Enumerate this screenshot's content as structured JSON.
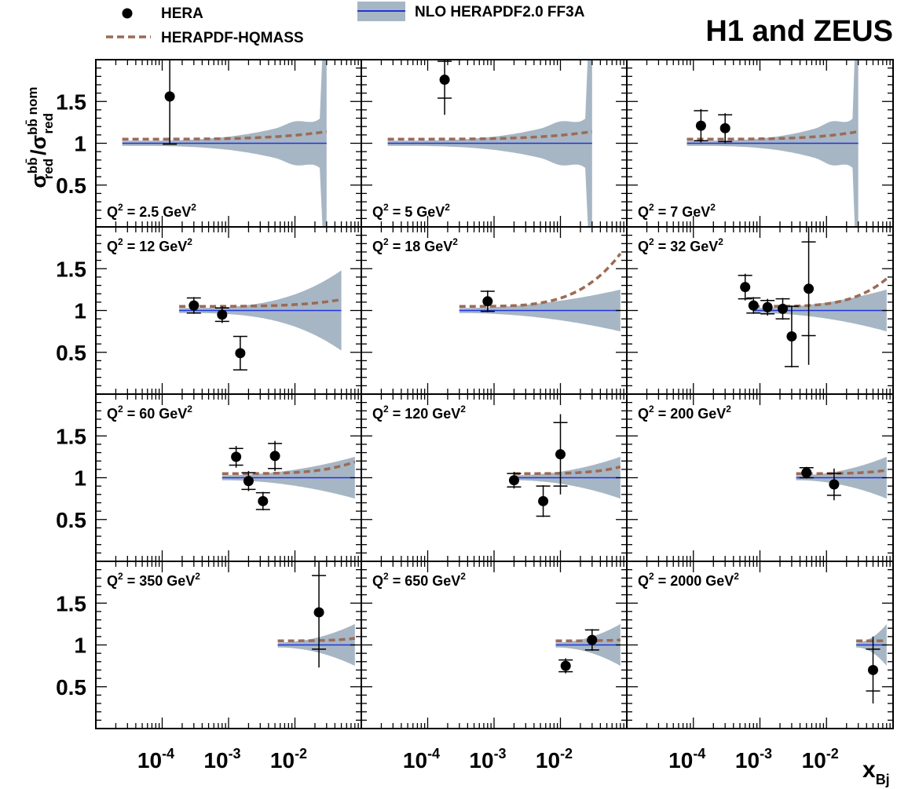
{
  "collaboration": "H1 and ZEUS",
  "legend": {
    "data_label": "HERA",
    "hqmass_label": "HERAPDF-HQMASS",
    "nlo_label": "NLO HERAPDF2.0 FF3A"
  },
  "y_axis_label": {
    "num": "σ",
    "num_sup": "bb̄",
    "num_sub": "red",
    "slash": "/",
    "den": "σ",
    "den_sup": "bb̄ nom",
    "den_sub": "red"
  },
  "x_axis_label": {
    "main": "x",
    "sub": "Bj"
  },
  "colors": {
    "band": "#a6b6c4",
    "nominal": "#2233dd",
    "hqmass": "#9c6a55",
    "data": "#000000"
  },
  "chart_data": {
    "type": "scatter",
    "x_scale": "log",
    "xlim": [
      1e-05,
      0.1
    ],
    "ylim": [
      0,
      2
    ],
    "x_ticks": [
      {
        "value": 0.0001,
        "base": "10",
        "exp": "-4"
      },
      {
        "value": 0.001,
        "base": "10",
        "exp": "-3"
      },
      {
        "value": 0.01,
        "base": "10",
        "exp": "-2"
      }
    ],
    "y_ticks": [
      {
        "value": 0.5,
        "label": "0.5"
      },
      {
        "value": 1,
        "label": "1"
      },
      {
        "value": 1.5,
        "label": "1.5"
      }
    ],
    "panels": [
      {
        "q2": "2.5",
        "theory_range": [
          2.5e-05,
          0.03
        ],
        "hq_end": 1.14,
        "band_tail": "blowup",
        "points": [
          {
            "x": 0.00013,
            "y": 1.56,
            "err": 0.57,
            "syst": 0.57
          }
        ]
      },
      {
        "q2": "5",
        "theory_range": [
          2.5e-05,
          0.03
        ],
        "hq_end": 1.14,
        "band_tail": "blowup",
        "points": [
          {
            "x": 0.00018,
            "y": 1.76,
            "err": 0.42,
            "syst": 0.22
          }
        ]
      },
      {
        "q2": "7",
        "theory_range": [
          8e-05,
          0.03
        ],
        "hq_end": 1.14,
        "band_tail": "blowup",
        "points": [
          {
            "x": 0.00013,
            "y": 1.21,
            "err": 0.2,
            "syst": 0.18
          },
          {
            "x": 0.0003,
            "y": 1.18,
            "err": 0.18,
            "syst": 0.16
          }
        ]
      },
      {
        "q2": "12",
        "theory_range": [
          0.00018,
          0.05
        ],
        "hq_end": 1.13,
        "band_tail": "wide",
        "points": [
          {
            "x": 0.0003,
            "y": 1.06,
            "err": 0.1,
            "syst": 0.09
          },
          {
            "x": 0.0008,
            "y": 0.95,
            "err": 0.1,
            "syst": 0.08
          },
          {
            "x": 0.0015,
            "y": 0.49,
            "err": 0.2,
            "syst": 0.2
          }
        ]
      },
      {
        "q2": "18",
        "theory_range": [
          0.0003,
          0.08
        ],
        "hq_end": 1.68,
        "band_tail": "normal",
        "points": [
          {
            "x": 0.0008,
            "y": 1.11,
            "err": 0.13,
            "syst": 0.12
          }
        ]
      },
      {
        "q2": "32",
        "theory_range": [
          0.0008,
          0.08
        ],
        "hq_end": 1.38,
        "band_tail": "normal",
        "points": [
          {
            "x": 0.0006,
            "y": 1.28,
            "err": 0.16,
            "syst": 0.14
          },
          {
            "x": 0.0008,
            "y": 1.06,
            "err": 0.1,
            "syst": 0.09
          },
          {
            "x": 0.0013,
            "y": 1.04,
            "err": 0.1,
            "syst": 0.08
          },
          {
            "x": 0.0022,
            "y": 1.02,
            "err": 0.13,
            "syst": 0.12
          },
          {
            "x": 0.003,
            "y": 0.69,
            "err": 0.37,
            "syst": 0.36
          },
          {
            "x": 0.0054,
            "y": 1.26,
            "err": 0.91,
            "syst": 0.56
          }
        ]
      },
      {
        "q2": "60",
        "theory_range": [
          0.0008,
          0.08
        ],
        "hq_end": 1.19,
        "band_tail": "normal",
        "points": [
          {
            "x": 0.0013,
            "y": 1.25,
            "err": 0.13,
            "syst": 0.1
          },
          {
            "x": 0.002,
            "y": 0.96,
            "err": 0.12,
            "syst": 0.1
          },
          {
            "x": 0.0033,
            "y": 0.72,
            "err": 0.11,
            "syst": 0.1
          },
          {
            "x": 0.005,
            "y": 1.26,
            "err": 0.18,
            "syst": 0.15
          }
        ]
      },
      {
        "q2": "120",
        "theory_range": [
          0.002,
          0.08
        ],
        "hq_end": 1.13,
        "band_tail": "normal",
        "points": [
          {
            "x": 0.002,
            "y": 0.97,
            "err": 0.1,
            "syst": 0.08
          },
          {
            "x": 0.0055,
            "y": 0.72,
            "err": 0.19,
            "syst": 0.18
          },
          {
            "x": 0.01,
            "y": 1.28,
            "err": 0.48,
            "syst": 0.38
          }
        ]
      },
      {
        "q2": "200",
        "theory_range": [
          0.0035,
          0.08
        ],
        "hq_end": 1.09,
        "band_tail": "normal",
        "points": [
          {
            "x": 0.005,
            "y": 1.06,
            "err": 0.07,
            "syst": 0.06
          },
          {
            "x": 0.013,
            "y": 0.92,
            "err": 0.19,
            "syst": 0.13
          }
        ]
      },
      {
        "q2": "350",
        "theory_range": [
          0.0055,
          0.08
        ],
        "hq_end": 1.08,
        "band_tail": "normal",
        "points": [
          {
            "x": 0.023,
            "y": 1.39,
            "err": 0.66,
            "syst": 0.44
          }
        ]
      },
      {
        "q2": "650",
        "theory_range": [
          0.0085,
          0.08
        ],
        "hq_end": 1.06,
        "band_tail": "normal",
        "points": [
          {
            "x": 0.012,
            "y": 0.75,
            "err": 0.09,
            "syst": 0.07
          },
          {
            "x": 0.03,
            "y": 1.06,
            "err": 0.13,
            "syst": 0.12
          }
        ]
      },
      {
        "q2": "2000",
        "theory_range": [
          0.028,
          0.08
        ],
        "hq_end": 1.05,
        "band_tail": "normal",
        "points": [
          {
            "x": 0.05,
            "y": 0.7,
            "err": 0.4,
            "syst": 0.25
          }
        ]
      }
    ]
  }
}
